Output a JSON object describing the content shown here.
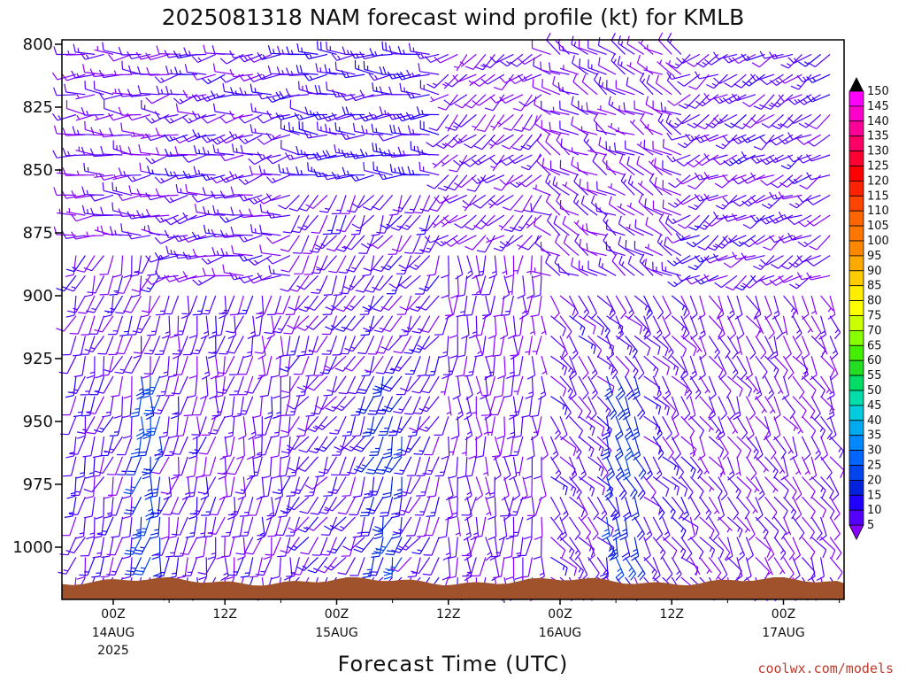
{
  "chart_data": {
    "type": "wind-barb profile",
    "title": "2025081318 NAM forecast wind profile (kt) for KMLB",
    "xlabel": "Forecast Time (UTC)",
    "ylabel": "",
    "y_ticks": [
      800,
      825,
      850,
      875,
      900,
      925,
      950,
      975,
      1000
    ],
    "y_range_hPa": [
      800,
      1020
    ],
    "x_range_hours": [
      -6,
      78
    ],
    "x_ticks": [
      {
        "hour": 0,
        "label": "00Z",
        "sub": "14AUG",
        "sub2": "2025"
      },
      {
        "hour": 12,
        "label": "12Z",
        "sub": "",
        "sub2": ""
      },
      {
        "hour": 24,
        "label": "00Z",
        "sub": "15AUG",
        "sub2": ""
      },
      {
        "hour": 36,
        "label": "12Z",
        "sub": "",
        "sub2": ""
      },
      {
        "hour": 48,
        "label": "00Z",
        "sub": "16AUG",
        "sub2": ""
      },
      {
        "hour": 60,
        "label": "12Z",
        "sub": "",
        "sub2": ""
      },
      {
        "hour": 72,
        "label": "00Z",
        "sub": "17AUG",
        "sub2": ""
      }
    ],
    "colorbar": {
      "units": "kt",
      "values": [
        150,
        145,
        140,
        135,
        130,
        125,
        120,
        115,
        110,
        105,
        100,
        95,
        90,
        85,
        80,
        75,
        70,
        65,
        60,
        55,
        50,
        45,
        40,
        35,
        30,
        25,
        20,
        15,
        10,
        5
      ],
      "colors": [
        "#ff00ff",
        "#ff00cc",
        "#ff0099",
        "#ff0066",
        "#ff0033",
        "#ff0000",
        "#ff2200",
        "#ff4400",
        "#ff6600",
        "#ff7700",
        "#ff8800",
        "#ffaa00",
        "#ffcc00",
        "#ffee00",
        "#ffff00",
        "#ccff00",
        "#88ff00",
        "#44ee00",
        "#22dd22",
        "#00dd66",
        "#00ddaa",
        "#00ccdd",
        "#00aaee",
        "#0088ff",
        "#0066ff",
        "#0044ee",
        "#0022dd",
        "#2200ff",
        "#5500ff",
        "#8800ff"
      ]
    },
    "wind_regimes": [
      {
        "hours": [
          -6,
          6
        ],
        "levels_hPa": [
          800,
          880
        ],
        "dir_deg": 270,
        "speed_kt": 10
      },
      {
        "hours": [
          -6,
          6
        ],
        "levels_hPa": [
          880,
          1015
        ],
        "dir_deg": 200,
        "speed_kt": 12
      },
      {
        "hours": [
          3,
          6
        ],
        "levels_hPa": [
          925,
          1010
        ],
        "dir_deg": 190,
        "speed_kt": 25
      },
      {
        "hours": [
          6,
          20
        ],
        "levels_hPa": [
          800,
          900
        ],
        "dir_deg": 260,
        "speed_kt": 12
      },
      {
        "hours": [
          6,
          20
        ],
        "levels_hPa": [
          900,
          1015
        ],
        "dir_deg": 190,
        "speed_kt": 12
      },
      {
        "hours": [
          20,
          36
        ],
        "levels_hPa": [
          800,
          860
        ],
        "dir_deg": 270,
        "speed_kt": 15
      },
      {
        "hours": [
          20,
          36
        ],
        "levels_hPa": [
          860,
          1015
        ],
        "dir_deg": 210,
        "speed_kt": 12
      },
      {
        "hours": [
          28,
          31
        ],
        "levels_hPa": [
          930,
          1010
        ],
        "dir_deg": 200,
        "speed_kt": 22
      },
      {
        "hours": [
          36,
          47
        ],
        "levels_hPa": [
          800,
          880
        ],
        "dir_deg": 230,
        "speed_kt": 10
      },
      {
        "hours": [
          36,
          47
        ],
        "levels_hPa": [
          880,
          1015
        ],
        "dir_deg": 180,
        "speed_kt": 10
      },
      {
        "hours": [
          47,
          62
        ],
        "levels_hPa": [
          800,
          900
        ],
        "dir_deg": 300,
        "speed_kt": 10
      },
      {
        "hours": [
          47,
          62
        ],
        "levels_hPa": [
          900,
          1015
        ],
        "dir_deg": 140,
        "speed_kt": 12
      },
      {
        "hours": [
          53,
          56
        ],
        "levels_hPa": [
          930,
          1010
        ],
        "dir_deg": 160,
        "speed_kt": 22
      },
      {
        "hours": [
          62,
          78
        ],
        "levels_hPa": [
          800,
          900
        ],
        "dir_deg": 240,
        "speed_kt": 12
      },
      {
        "hours": [
          62,
          78
        ],
        "levels_hPa": [
          900,
          1015
        ],
        "dir_deg": 150,
        "speed_kt": 10
      }
    ],
    "surface_pressure_hPa": 1015,
    "terrain_color": "#a0522d",
    "barb_color": "#8800ff"
  },
  "credit": "coolwx.com/models"
}
